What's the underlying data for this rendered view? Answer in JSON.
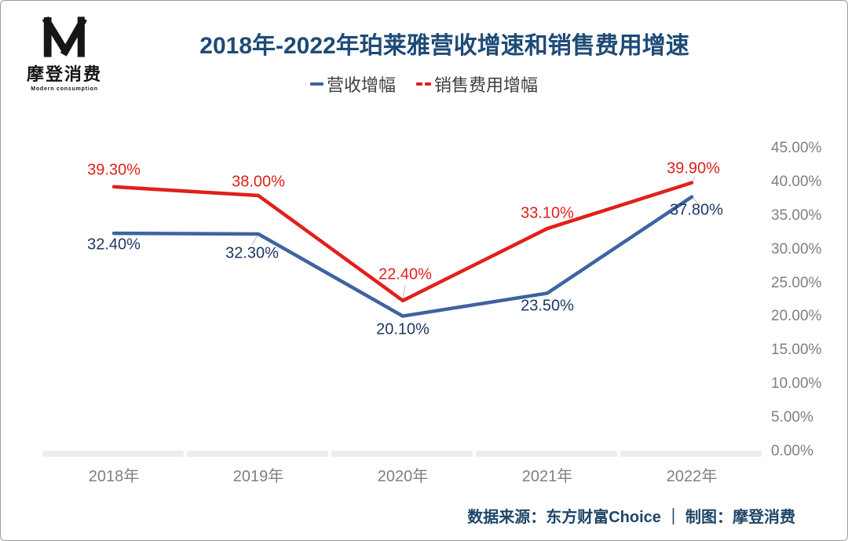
{
  "logo": {
    "name": "摩登消费",
    "subtitle": "Modern consumption"
  },
  "header": {
    "title": "2018年-2022年珀莱雅营收增速和销售费用增速"
  },
  "legend": [
    {
      "label": "营收增幅",
      "color": "#3e63a0"
    },
    {
      "label": "销售费用增幅",
      "color": "#e0201c"
    }
  ],
  "footer": {
    "source": "数据来源：东方财富Choice ｜ 制图：摩登消费"
  },
  "colors": {
    "title_text": "#1e4b77",
    "revenue_line": "#3e63a0",
    "revenue_label": "#1f3864",
    "expense_line": "#e0201c",
    "expense_label": "#e0201c",
    "axis_text": "#7f7f7f",
    "axis_band": "#ededed"
  },
  "chart_data": {
    "type": "line",
    "categories": [
      "2018年",
      "2019年",
      "2020年",
      "2021年",
      "2022年"
    ],
    "series": [
      {
        "name": "营收增幅",
        "color": "#3e63a0",
        "label_color": "#1f3864",
        "label_side": "below",
        "values": [
          32.4,
          32.3,
          20.1,
          23.5,
          37.8
        ],
        "labels": [
          "32.40%",
          "32.30%",
          "20.10%",
          "23.50%",
          "37.80%"
        ]
      },
      {
        "name": "销售费用增幅",
        "color": "#e0201c",
        "label_color": "#e0201c",
        "label_side": "above",
        "values": [
          39.3,
          38.0,
          22.4,
          33.1,
          39.9
        ],
        "labels": [
          "39.30%",
          "38.00%",
          "22.40%",
          "33.10%",
          "39.90%"
        ]
      }
    ],
    "y_ticks": [
      "45.00%",
      "40.00%",
      "35.00%",
      "30.00%",
      "25.00%",
      "20.00%",
      "15.00%",
      "10.00%",
      "5.00%",
      "0.00%"
    ],
    "ylim": [
      0,
      45
    ],
    "y_step": 5,
    "grid": false,
    "legend_position": "top",
    "y_axis_side": "right",
    "title": "2018年-2022年珀莱雅营收增速和销售费用增速"
  }
}
